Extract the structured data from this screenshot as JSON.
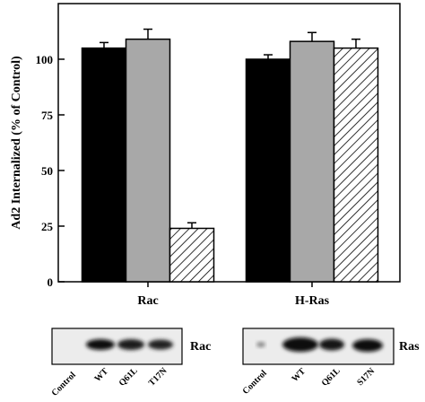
{
  "chart_data": {
    "type": "bar",
    "ylabel": "Ad2 Internalized (% of Control)",
    "ylim": [
      0,
      125
    ],
    "yticks": [
      0,
      25,
      50,
      75,
      100
    ],
    "categories": [
      "Rac",
      "H-Ras"
    ],
    "series": [
      {
        "values": [
          105,
          100
        ],
        "errors": [
          2.5,
          2
        ],
        "fill": "#000000",
        "pattern": "solid"
      },
      {
        "values": [
          109,
          108
        ],
        "errors": [
          4.5,
          4
        ],
        "fill": "#a8a8a8",
        "pattern": "solid"
      },
      {
        "values": [
          24,
          105
        ],
        "errors": [
          2.5,
          4
        ],
        "fill": "#ffffff",
        "pattern": "diagonal-hatch"
      }
    ]
  },
  "blots": [
    {
      "label": "Rac",
      "lanes": [
        "Control",
        "WT",
        "Q61L",
        "T17N"
      ]
    },
    {
      "label": "Ras",
      "lanes": [
        "Control",
        "WT",
        "Q61L",
        "S17N"
      ]
    }
  ]
}
